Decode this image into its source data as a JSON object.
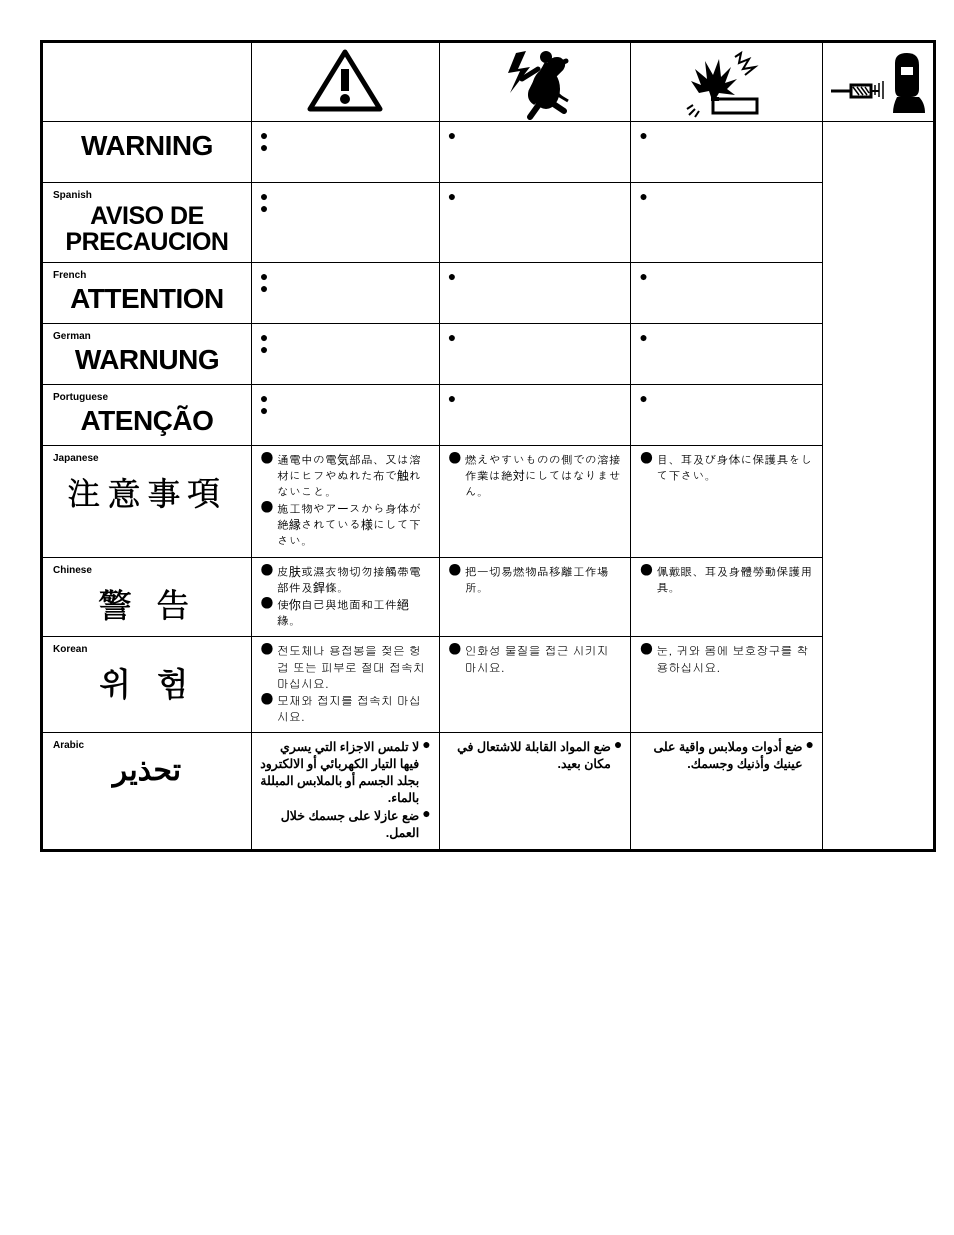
{
  "table": {
    "border_color": "#000000",
    "background_color": "#ffffff",
    "header_icons": [
      "alert-triangle",
      "electric-shock",
      "fire-explosion",
      "welding-ppe"
    ],
    "rows": [
      {
        "id": "english",
        "lang_tag": "",
        "warn_word": "WARNING",
        "warn_class": "",
        "cells": [
          {
            "lines": [
              "",
              ""
            ]
          },
          {
            "lines": [
              ""
            ]
          },
          {
            "lines": [
              ""
            ]
          }
        ],
        "empty": true
      },
      {
        "id": "spanish",
        "lang_tag": "Spanish",
        "warn_word": "AVISO DE PRECAUCION",
        "warn_class": "",
        "cells": [
          {
            "lines": [
              "",
              ""
            ]
          },
          {
            "lines": [
              ""
            ]
          },
          {
            "lines": [
              ""
            ]
          }
        ],
        "empty": true
      },
      {
        "id": "french",
        "lang_tag": "French",
        "warn_word": "ATTENTION",
        "warn_class": "",
        "cells": [
          {
            "lines": [
              "",
              ""
            ]
          },
          {
            "lines": [
              ""
            ]
          },
          {
            "lines": [
              ""
            ]
          }
        ],
        "empty": true
      },
      {
        "id": "german",
        "lang_tag": "German",
        "warn_word": "WARNUNG",
        "warn_class": "",
        "cells": [
          {
            "lines": [
              "",
              ""
            ]
          },
          {
            "lines": [
              ""
            ]
          },
          {
            "lines": [
              ""
            ]
          }
        ],
        "empty": true
      },
      {
        "id": "portuguese",
        "lang_tag": "Portuguese",
        "warn_word": "ATENÇÃO",
        "warn_class": "",
        "cells": [
          {
            "lines": [
              "",
              ""
            ]
          },
          {
            "lines": [
              ""
            ]
          },
          {
            "lines": [
              ""
            ]
          }
        ],
        "empty": true
      },
      {
        "id": "japanese",
        "lang_tag": "Japanese",
        "warn_word": "注意事項",
        "warn_class": "cjk",
        "cells": [
          {
            "lines": [
              "通電中の電気部品、又は溶材にヒフやぬれた布で触れないこと。",
              "施工物やアースから身体が絶縁されている様にして下さい。"
            ]
          },
          {
            "lines": [
              "燃えやすいものの側での溶接作業は絶対にしてはなりません。"
            ]
          },
          {
            "lines": [
              "目、耳及び身体に保護具をして下さい。"
            ]
          }
        ],
        "cjk": true
      },
      {
        "id": "chinese",
        "lang_tag": "Chinese",
        "warn_word": "警 告",
        "warn_class": "cjk",
        "cells": [
          {
            "lines": [
              "皮肤或濕衣物切勿接觸帶電部件及銲條。",
              "使你自己與地面和工件絕緣。"
            ]
          },
          {
            "lines": [
              "把一切易燃物品移離工作場所。"
            ]
          },
          {
            "lines": [
              "佩戴眼、耳及身體勞動保護用具。"
            ]
          }
        ],
        "cjk": true
      },
      {
        "id": "korean",
        "lang_tag": "Korean",
        "warn_word": "위 험",
        "warn_class": "cjk",
        "cells": [
          {
            "lines": [
              "전도체나 용접봉을 젖은 헝겁 또는 피부로 절대 접속치 마십시요.",
              "모재와 접지를 접속치 마십시요."
            ]
          },
          {
            "lines": [
              "인화성 물질을 접근 시키지 마시요."
            ]
          },
          {
            "lines": [
              "눈, 귀와 몸에 보호장구를 착용하십시요."
            ]
          }
        ],
        "cjk": true
      },
      {
        "id": "arabic",
        "lang_tag": "Arabic",
        "warn_word": "تحذير",
        "warn_class": "ar",
        "cells": [
          {
            "lines": [
              "لا تلمس الاجزاء التي يسري فيها التيار الكهربائي أو الالكترود بجلد الجسم أو بالملابس المبللة بالماء.",
              "ضع عازلا على جسمك خلال العمل."
            ]
          },
          {
            "lines": [
              "ضع المواد القابلة للاشتعال في مكان بعيد."
            ]
          },
          {
            "lines": [
              "ضع أدوات وملابس واقية على عينيك وأذنيك وجسمك."
            ]
          }
        ],
        "ar": true
      }
    ]
  }
}
